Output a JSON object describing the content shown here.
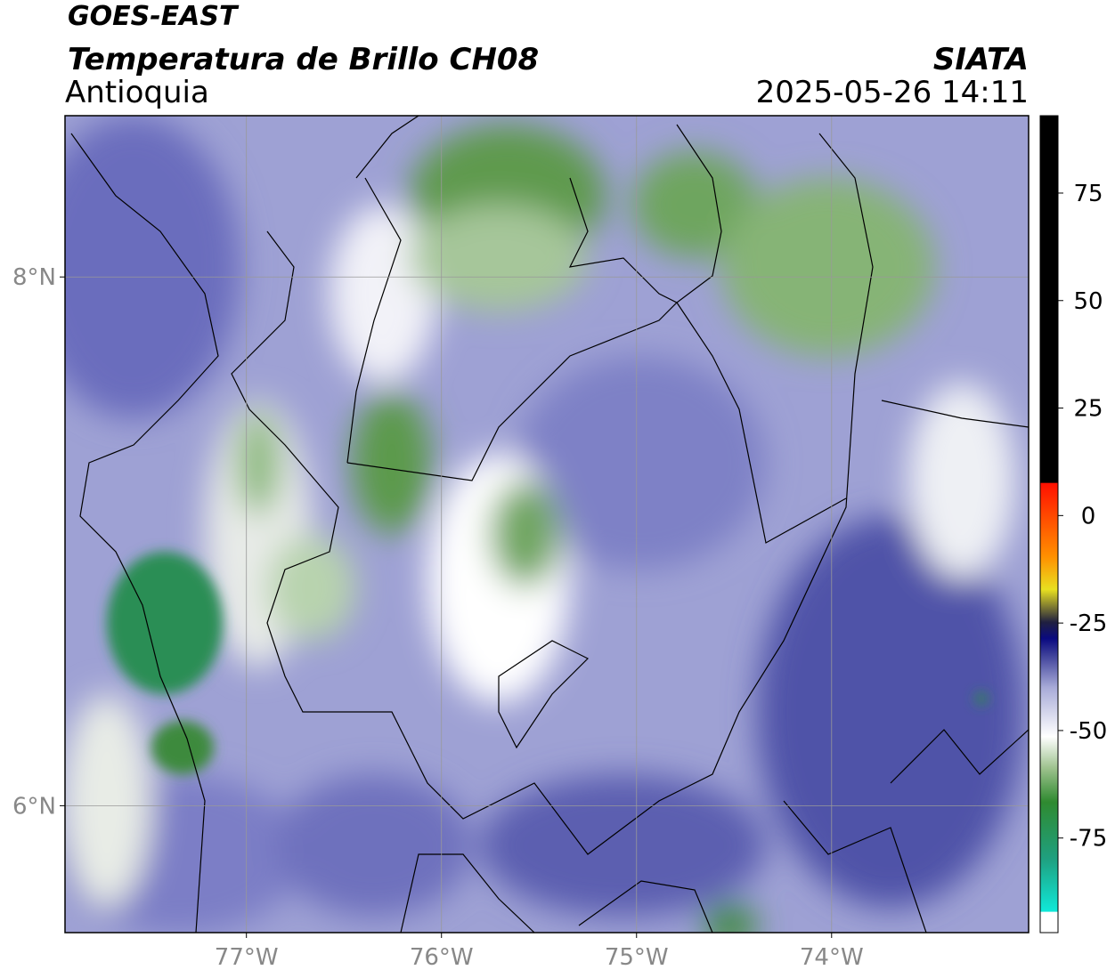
{
  "header": {
    "title": "GOES-EAST",
    "subtitle": "Temperatura de Brillo CH08",
    "region": "Antioquia",
    "source": "SIATA",
    "datetime": "2025-05-26 14:11"
  },
  "map": {
    "xlim": [
      -77.93,
      -72.99
    ],
    "ylim": [
      5.52,
      8.61
    ],
    "xticks": [
      {
        "value": -77,
        "label": "77°W"
      },
      {
        "value": -76,
        "label": "76°W"
      },
      {
        "value": -75,
        "label": "75°W"
      },
      {
        "value": -74,
        "label": "74°W"
      }
    ],
    "yticks": [
      {
        "value": 8,
        "label": "8°N"
      },
      {
        "value": 6,
        "label": "6°N"
      }
    ]
  },
  "colorbar": {
    "lim": [
      -97,
      93
    ],
    "ticks": [
      75,
      50,
      25,
      0,
      -25,
      -50,
      -75
    ]
  }
}
